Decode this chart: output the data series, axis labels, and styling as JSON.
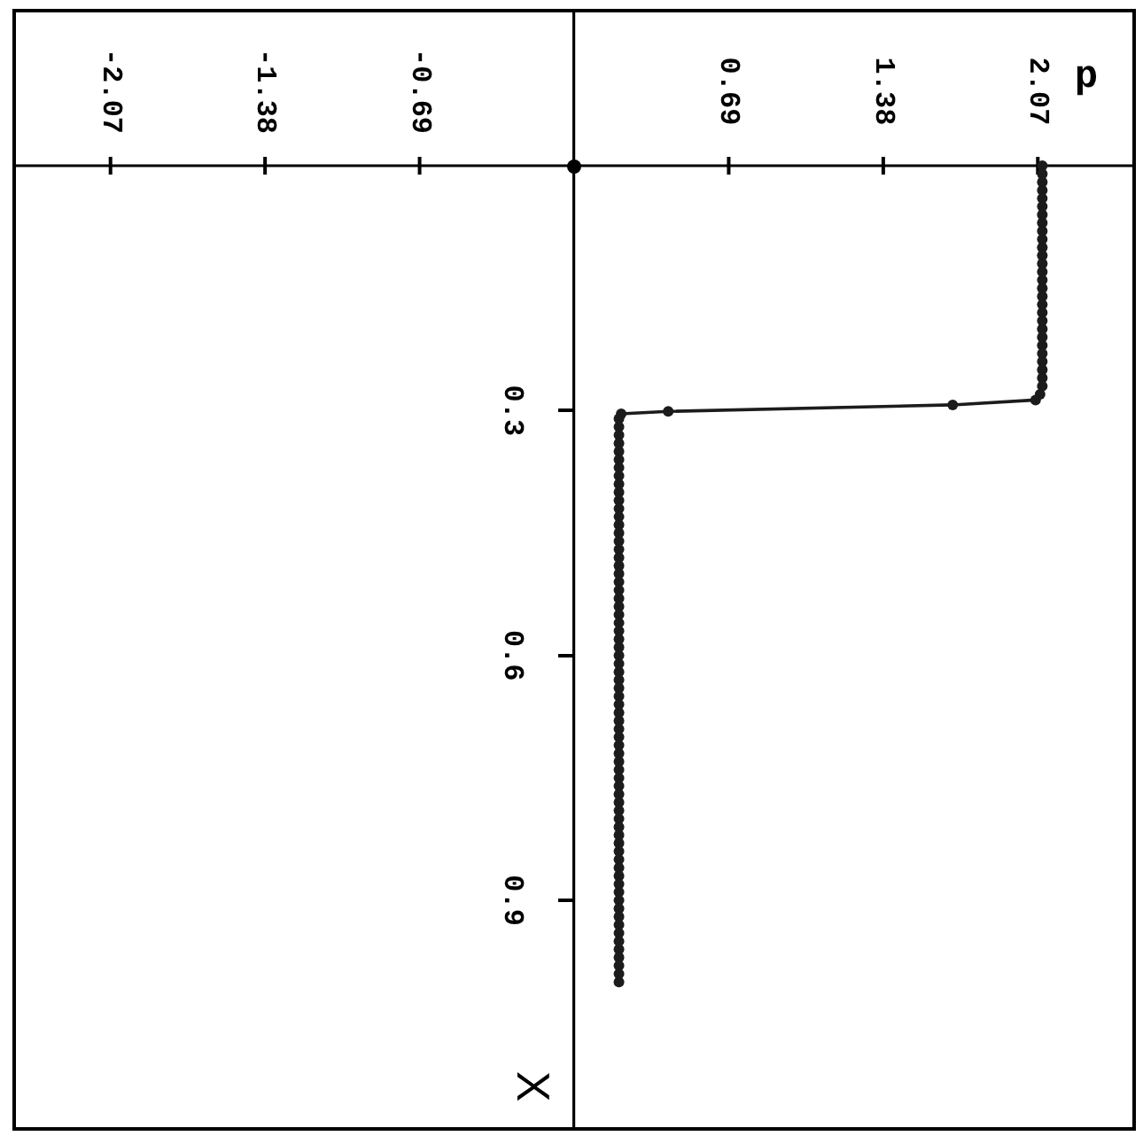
{
  "chart_data": {
    "type": "line",
    "xlabel": "p",
    "ylabel": "X",
    "xlim": [
      -2.5,
      2.5
    ],
    "xticks": [
      -2.07,
      -1.38,
      -0.69,
      0.69,
      1.38,
      2.07
    ],
    "ylim": [
      1.18,
      -0.19
    ],
    "yticks": [
      0.3,
      0.6,
      0.9
    ],
    "marker": "circle",
    "line_style": "solid",
    "color": "#1c1c1c",
    "x": [
      2.09,
      2.09,
      2.09,
      2.09,
      2.09,
      2.09,
      2.09,
      2.09,
      2.09,
      2.09,
      2.09,
      2.09,
      2.09,
      2.09,
      2.09,
      2.09,
      2.09,
      2.09,
      2.09,
      2.09,
      2.09,
      2.09,
      2.09,
      2.09,
      2.09,
      2.09,
      2.09,
      2.09,
      2.08,
      2.06,
      1.69,
      0.42,
      0.21,
      0.2,
      0.2,
      0.2,
      0.2,
      0.2,
      0.2,
      0.2,
      0.2,
      0.2,
      0.2,
      0.2,
      0.2,
      0.2,
      0.2,
      0.2,
      0.2,
      0.2,
      0.2,
      0.2,
      0.2,
      0.2,
      0.2,
      0.2,
      0.2,
      0.2,
      0.2,
      0.2,
      0.2,
      0.2,
      0.2,
      0.2,
      0.2,
      0.2,
      0.2,
      0.2,
      0.2,
      0.2,
      0.2,
      0.2,
      0.2,
      0.2,
      0.2,
      0.2,
      0.2,
      0.2,
      0.2,
      0.2,
      0.2,
      0.2,
      0.2,
      0.2,
      0.2,
      0.2,
      0.2,
      0.2,
      0.2,
      0.2,
      0.2,
      0.2,
      0.2,
      0.2,
      0.2,
      0.2,
      0.2,
      0.2,
      0.2,
      0.2,
      0.2,
      0.2,
      0.2
    ],
    "values": [
      0,
      0.01,
      0.02,
      0.03,
      0.04,
      0.05,
      0.06,
      0.07,
      0.08,
      0.09,
      0.1,
      0.11,
      0.12,
      0.13,
      0.14,
      0.15,
      0.16,
      0.17,
      0.18,
      0.19,
      0.2,
      0.21,
      0.22,
      0.23,
      0.24,
      0.25,
      0.26,
      0.27,
      0.28,
      0.287,
      0.293,
      0.301,
      0.304,
      0.31,
      0.32,
      0.33,
      0.34,
      0.35,
      0.36,
      0.37,
      0.38,
      0.39,
      0.4,
      0.41,
      0.42,
      0.43,
      0.44,
      0.45,
      0.46,
      0.47,
      0.48,
      0.49,
      0.5,
      0.51,
      0.52,
      0.53,
      0.54,
      0.55,
      0.56,
      0.57,
      0.58,
      0.59,
      0.6,
      0.61,
      0.62,
      0.63,
      0.64,
      0.65,
      0.66,
      0.67,
      0.68,
      0.69,
      0.7,
      0.71,
      0.72,
      0.73,
      0.74,
      0.75,
      0.76,
      0.77,
      0.78,
      0.79,
      0.8,
      0.81,
      0.82,
      0.83,
      0.84,
      0.85,
      0.86,
      0.87,
      0.88,
      0.89,
      0.9,
      0.91,
      0.92,
      0.93,
      0.94,
      0.95,
      0.96,
      0.97,
      0.98,
      0.99,
      1.0
    ]
  }
}
